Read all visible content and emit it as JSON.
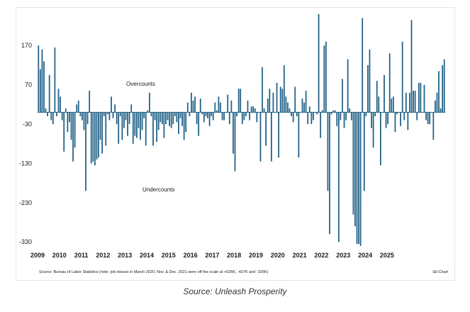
{
  "chart_data": {
    "type": "bar",
    "title": "",
    "xlabel": "",
    "ylabel": "",
    "y_ticks": [
      170,
      70,
      -30,
      -130,
      -230,
      -330
    ],
    "ylim": [
      -335,
      230
    ],
    "x_labels": [
      "2009",
      "2010",
      "2011",
      "2012",
      "2013",
      "2014",
      "2015",
      "2016",
      "2017",
      "2018",
      "2019",
      "2020",
      "2021",
      "2022",
      "2023",
      "2024",
      "2025"
    ],
    "x_start": "2009-01",
    "grid": false,
    "series": [
      {
        "color": "#1f5f85",
        "values": [
          170,
          110,
          160,
          130,
          10,
          -10,
          95,
          -20,
          -30,
          165,
          -10,
          60,
          40,
          -20,
          -100,
          10,
          -50,
          -25,
          -70,
          -125,
          -90,
          20,
          30,
          -10,
          -20,
          -45,
          -200,
          -30,
          55,
          -130,
          -125,
          -135,
          -120,
          -115,
          -70,
          -105,
          -10,
          -85,
          -5,
          -20,
          40,
          -15,
          20,
          -30,
          -80,
          -10,
          -70,
          -40,
          -20,
          -60,
          -30,
          20,
          -80,
          -60,
          -65,
          -40,
          -70,
          -45,
          -15,
          -85,
          5,
          50,
          -10,
          -85,
          -20,
          -75,
          -45,
          -25,
          -30,
          -65,
          -30,
          -20,
          -35,
          -40,
          -30,
          -10,
          -25,
          -55,
          -15,
          -35,
          -70,
          -50,
          25,
          -10,
          50,
          30,
          40,
          -30,
          -60,
          35,
          -5,
          -25,
          -10,
          -15,
          -35,
          -10,
          -20,
          25,
          5,
          40,
          25,
          -20,
          -20,
          0,
          45,
          -30,
          30,
          -105,
          -150,
          -10,
          60,
          60,
          -30,
          -20,
          -10,
          30,
          -20,
          15,
          15,
          10,
          -25,
          0,
          -125,
          115,
          10,
          -85,
          35,
          60,
          -125,
          50,
          0,
          75,
          -115,
          65,
          60,
          120,
          40,
          25,
          10,
          -10,
          -25,
          65,
          -10,
          -115,
          0,
          35,
          25,
          55,
          -30,
          15,
          -30,
          -20,
          0,
          -5,
          250,
          -65,
          5,
          170,
          180,
          -200,
          -310,
          -5,
          5,
          5,
          -35,
          -330,
          -20,
          85,
          -40,
          -20,
          135,
          10,
          -20,
          -260,
          -290,
          -335,
          -335,
          -340,
          240,
          -200,
          -10,
          120,
          160,
          -40,
          -90,
          -10,
          80,
          40,
          -135,
          0,
          95,
          -40,
          -30,
          150,
          35,
          40,
          -50,
          -5,
          0,
          -35,
          180,
          -20,
          50,
          -45,
          50,
          235,
          55,
          55,
          -20,
          75,
          75,
          0,
          70,
          -20,
          -30,
          -30,
          0,
          -70,
          30,
          50,
          105,
          10,
          120,
          135
        ]
      }
    ],
    "annotations": [
      "Overcounts",
      "Undercounts"
    ],
    "source_note": "Source: Bureau of Labor Statistics (note: job misses in March 2020, Nov. & Dec. 2021 were off the scale at +626K, -427K and -326K)",
    "credit": "I&I Chart"
  },
  "caption": "Source: Unleash Prosperity"
}
